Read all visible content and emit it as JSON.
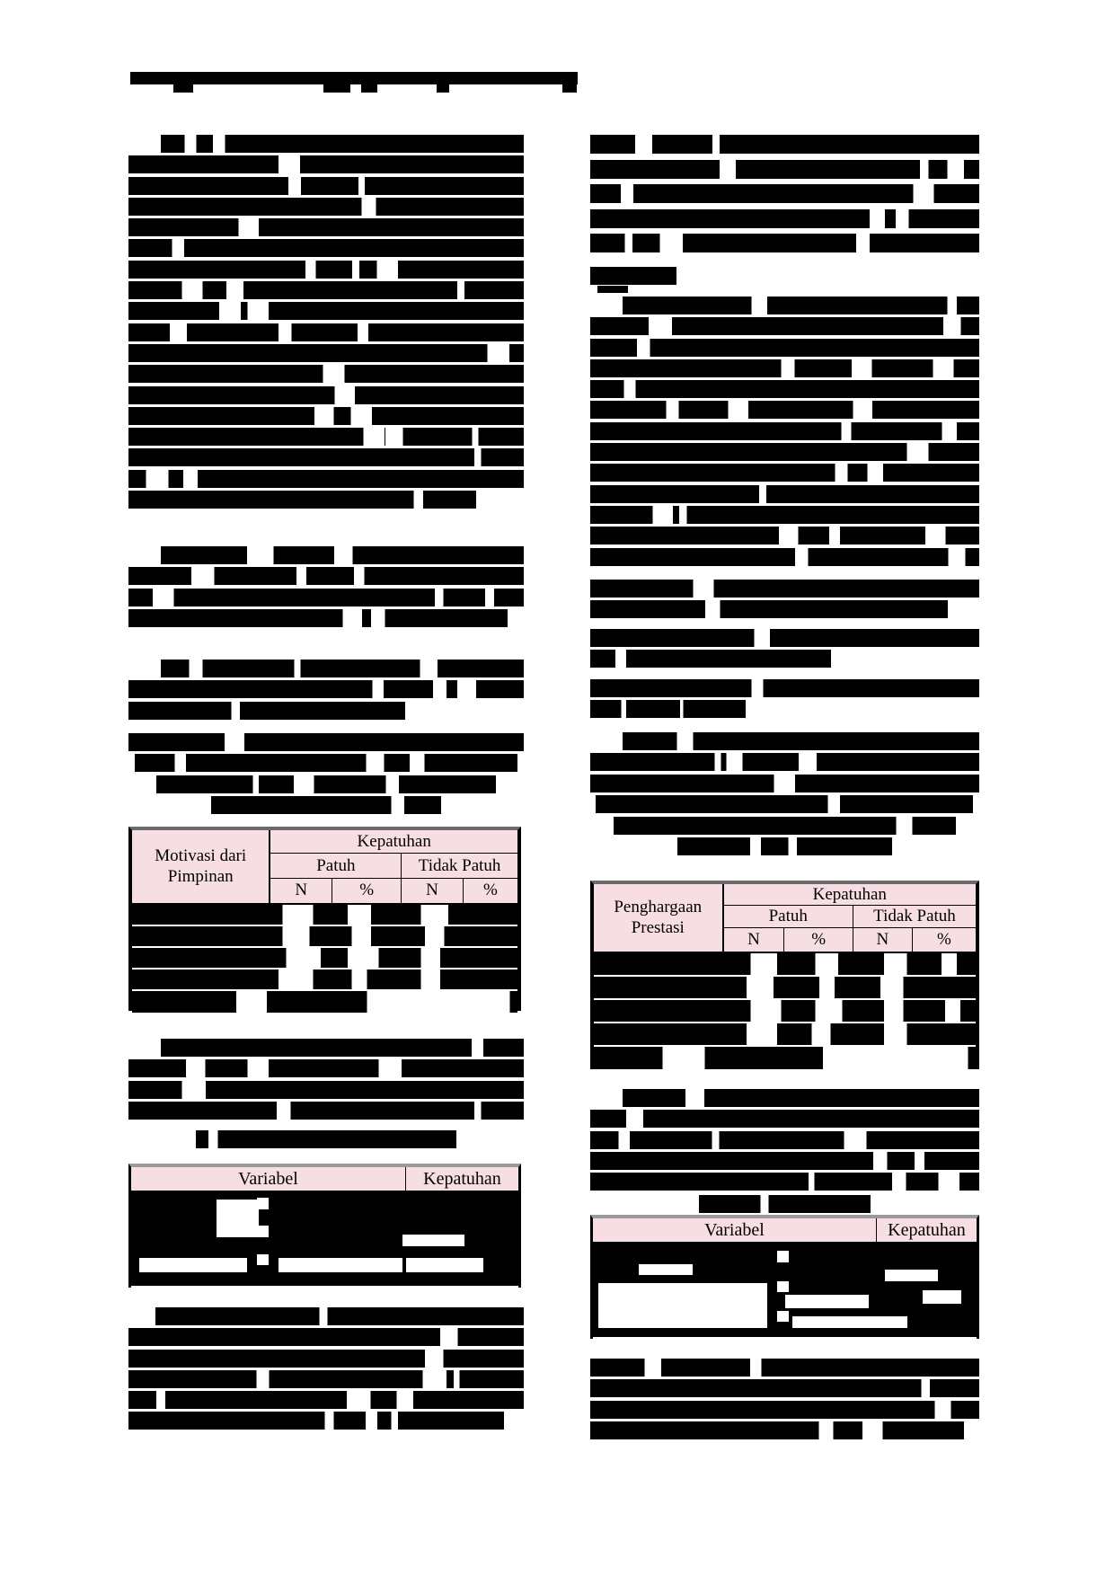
{
  "colors": {
    "page_bg": "#ffffff",
    "redaction": "#000000",
    "table_header_bg": "#f7dee2",
    "table_border": "#000000",
    "table_top_edge": "#6b6b6b"
  },
  "tables": {
    "motivasi": {
      "row_label_header": "Motivasi dari Pimpinan",
      "group_header": "Kepatuhan",
      "sub_headers": [
        "Patuh",
        "Tidak Patuh"
      ],
      "col_headers": [
        "N",
        "%",
        "N",
        "%"
      ]
    },
    "penghargaan": {
      "row_label_header": "Penghargaan Prestasi",
      "group_header": "Kepatuhan",
      "sub_headers": [
        "Patuh",
        "Tidak Patuh"
      ],
      "col_headers": [
        "N",
        "%",
        "N",
        "%"
      ]
    },
    "variabel_left": {
      "headers": [
        "Variabel",
        "Kepatuhan"
      ]
    },
    "variabel_right": {
      "headers": [
        "Variabel",
        "Kepatuhan"
      ]
    }
  }
}
